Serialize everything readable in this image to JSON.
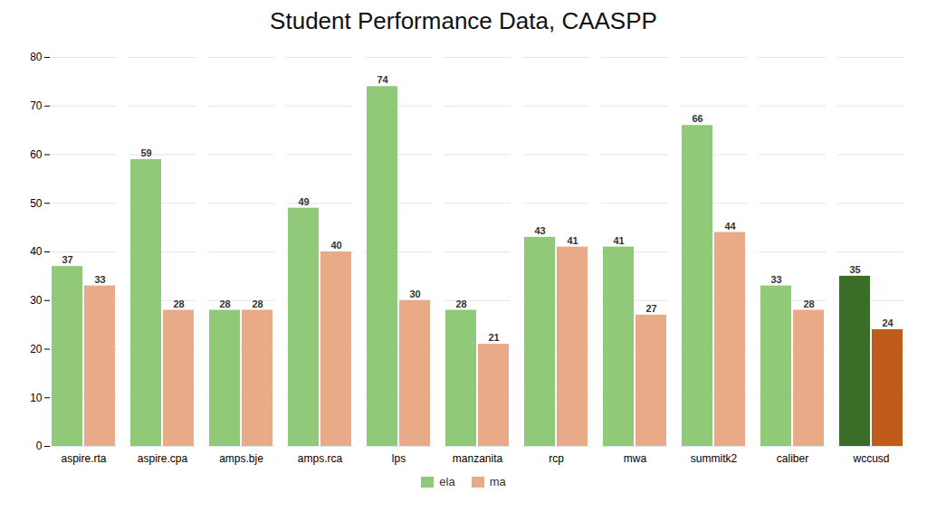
{
  "chart_data": {
    "type": "bar",
    "title": "Student Performance Data, CAASPP",
    "categories": [
      "aspire.rta",
      "aspire.cpa",
      "amps.bje",
      "amps.rca",
      "lps",
      "manzanita",
      "rcp",
      "mwa",
      "summitk2",
      "caliber",
      "wccusd"
    ],
    "series": [
      {
        "name": "ela",
        "colors": [
          "#90c978",
          "#90c978",
          "#90c978",
          "#90c978",
          "#90c978",
          "#90c978",
          "#90c978",
          "#90c978",
          "#90c978",
          "#90c978",
          "#3a6e28"
        ],
        "values": [
          37,
          59,
          28,
          49,
          74,
          28,
          43,
          41,
          66,
          33,
          35
        ]
      },
      {
        "name": "ma",
        "colors": [
          "#e8aa87",
          "#e8aa87",
          "#e8aa87",
          "#e8aa87",
          "#e8aa87",
          "#e8aa87",
          "#e8aa87",
          "#e8aa87",
          "#e8aa87",
          "#e8aa87",
          "#c05c1a"
        ],
        "values": [
          33,
          28,
          28,
          40,
          30,
          21,
          41,
          27,
          44,
          28,
          24
        ]
      }
    ],
    "ylim": [
      0,
      80
    ],
    "yticks": [
      0,
      10,
      20,
      30,
      40,
      50,
      60,
      70,
      80
    ],
    "grid": true,
    "data_labels": true,
    "legend": "bottom"
  }
}
